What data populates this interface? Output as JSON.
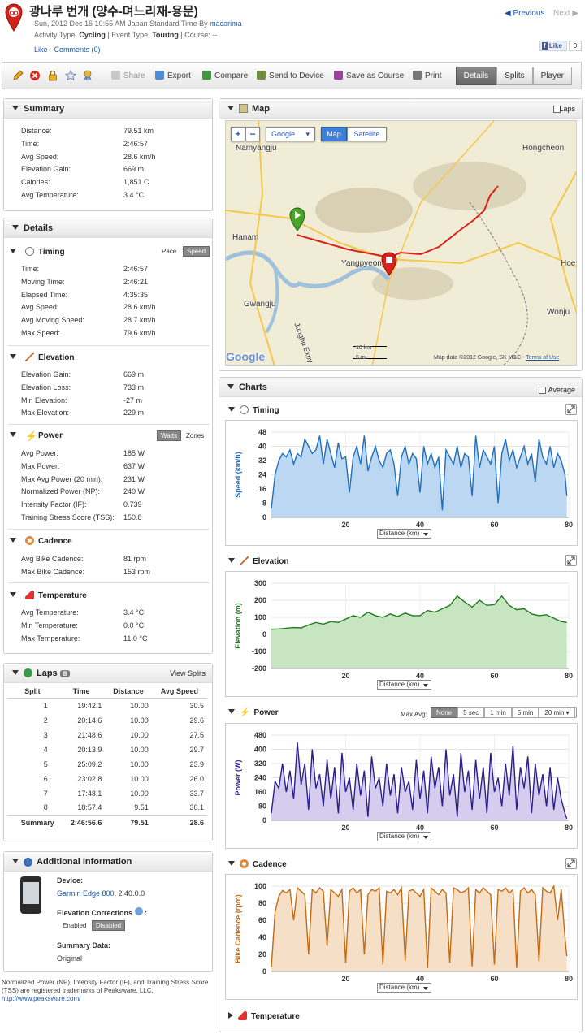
{
  "header": {
    "title": "광나루 번개 (양수-며느리재-용문)",
    "meta1": "Sun, 2012 Dec 16 10:55 AM Japan Standard Time By ",
    "author": "macarima",
    "activity_prefix": "Activity Type: ",
    "activity_type": "Cycling",
    "event_prefix": " | Event Type: ",
    "event_type": "Touring",
    "course_text": " | Course: --",
    "like": "Like",
    "comments": "Comments (0)",
    "previous": "Previous",
    "next": "Next",
    "fb_like": "Like",
    "fb_count": "0"
  },
  "toolbar": {
    "share": "Share",
    "export": "Export",
    "compare": "Compare",
    "send": "Send to Device",
    "save_course": "Save as Course",
    "print": "Print",
    "tabs": [
      "Details",
      "Splits",
      "Player"
    ],
    "active_tab": "Details"
  },
  "summary": {
    "title": "Summary",
    "rows": [
      [
        "Distance:",
        "79.51 km"
      ],
      [
        "Time:",
        "2:46:57"
      ],
      [
        "Avg Speed:",
        "28.6 km/h"
      ],
      [
        "Elevation Gain:",
        "669 m"
      ],
      [
        "Calories:",
        "1,851 C"
      ],
      [
        "Avg Temperature:",
        "3.4 °C"
      ]
    ]
  },
  "details": {
    "title": "Details",
    "timing": {
      "title": "Timing",
      "pace": "Pace",
      "speed": "Speed",
      "rows": [
        [
          "Time:",
          "2:46:57"
        ],
        [
          "Moving Time:",
          "2:46:21"
        ],
        [
          "Elapsed Time:",
          "4:35:35"
        ],
        [
          "Avg Speed:",
          "28.6 km/h"
        ],
        [
          "Avg Moving Speed:",
          "28.7 km/h"
        ],
        [
          "Max Speed:",
          "79.6 km/h"
        ]
      ]
    },
    "elevation": {
      "title": "Elevation",
      "rows": [
        [
          "Elevation Gain:",
          "669 m"
        ],
        [
          "Elevation Loss:",
          "733 m"
        ],
        [
          "Min Elevation:",
          "-27 m"
        ],
        [
          "Max Elevation:",
          "229 m"
        ]
      ]
    },
    "power": {
      "title": "Power",
      "watts": "Watts",
      "zones": "Zones",
      "rows": [
        [
          "Avg Power:",
          "185 W"
        ],
        [
          "Max Power:",
          "637 W"
        ],
        [
          "Max Avg Power (20 min):",
          "231 W"
        ],
        [
          "Normalized Power (NP):",
          "240 W"
        ],
        [
          "Intensity Factor (IF):",
          "0.739"
        ],
        [
          "Training Stress Score (TSS):",
          "150.8"
        ]
      ]
    },
    "cadence": {
      "title": "Cadence",
      "rows": [
        [
          "Avg Bike Cadence:",
          "81 rpm"
        ],
        [
          "Max Bike Cadence:",
          "153 rpm"
        ]
      ]
    },
    "temperature": {
      "title": "Temperature",
      "rows": [
        [
          "Avg Temperature:",
          "3.4 °C"
        ],
        [
          "Min Temperature:",
          "0.0 °C"
        ],
        [
          "Max Temperature:",
          "11.0 °C"
        ]
      ]
    }
  },
  "laps": {
    "title": "Laps",
    "count": "8",
    "view_splits": "View Splits",
    "headers": [
      "Split",
      "Time",
      "Distance",
      "Avg Speed"
    ],
    "rows": [
      [
        "1",
        "19:42.1",
        "10.00",
        "30.5"
      ],
      [
        "2",
        "20:14.6",
        "10.00",
        "29.6"
      ],
      [
        "3",
        "21:48.6",
        "10.00",
        "27.5"
      ],
      [
        "4",
        "20:13.9",
        "10.00",
        "29.7"
      ],
      [
        "5",
        "25:09.2",
        "10.00",
        "23.9"
      ],
      [
        "6",
        "23:02.8",
        "10.00",
        "26.0"
      ],
      [
        "7",
        "17:48.1",
        "10.00",
        "33.7"
      ],
      [
        "8",
        "18:57.4",
        "9.51",
        "30.1"
      ]
    ],
    "summary": [
      "Summary",
      "2:46:56.6",
      "79.51",
      "28.6"
    ]
  },
  "additional": {
    "title": "Additional Information",
    "device_label": "Device:",
    "device": "Garmin Edge 800",
    "device_version": ", 2.40.0.0",
    "elev_label": "Elevation Corrections",
    "enabled": "Enabled",
    "disabled": "Disabled",
    "summary_label": "Summary Data:",
    "summary_value": "Original"
  },
  "footnote": {
    "text": "Normalized Power (NP), Intensity Factor (IF), and Training Stress Score (TSS) are registered trademarks of Peaksware, LLC.",
    "url": "http://www.peaksware.com/"
  },
  "map": {
    "title": "Map",
    "laps_label": "Laps",
    "google": "Google",
    "map_btn": "Map",
    "satellite_btn": "Satellite",
    "labels": [
      "Namyangju",
      "Hongcheon",
      "Hanam",
      "Yangpyeong",
      "Hoe",
      "Gwangju",
      "Wonju",
      "Jungbu Expy"
    ],
    "scale_km": "10 km",
    "scale_mi": "5 mi",
    "attribution": "Map data ©2012 Google, SK M&C",
    "terms": "Terms of Use",
    "logo": "Google",
    "route_color": "#d8221b"
  },
  "charts_panel": {
    "title": "Charts",
    "average": "Average",
    "xaxis_select": "Distance (km)",
    "max_avg": "Max Avg:",
    "power_buttons": [
      "None",
      "5 sec",
      "1 min",
      "5 min",
      "20 min"
    ],
    "temperature_title": "Temperature"
  },
  "chart_data": [
    {
      "type": "area",
      "title": "Timing",
      "ylabel": "Speed (km/h)",
      "xlim": [
        0,
        80
      ],
      "ylim": [
        0,
        48
      ],
      "yticks": [
        0,
        8,
        16,
        24,
        32,
        40,
        48
      ],
      "xticks": [
        20,
        40,
        60,
        80
      ],
      "color": "#1f6fbf",
      "fill": "#bcd7f2",
      "x": [
        0,
        1,
        2,
        3,
        4,
        5,
        6,
        7,
        8,
        9,
        10,
        11,
        12,
        13,
        14,
        15,
        16,
        17,
        18,
        19,
        20,
        21,
        22,
        23,
        24,
        25,
        26,
        27,
        28,
        29,
        30,
        31,
        32,
        33,
        34,
        35,
        36,
        37,
        38,
        39,
        40,
        41,
        42,
        43,
        44,
        45,
        46,
        47,
        48,
        49,
        50,
        51,
        52,
        53,
        54,
        55,
        56,
        57,
        58,
        59,
        60,
        61,
        62,
        63,
        64,
        65,
        66,
        67,
        68,
        69,
        70,
        71,
        72,
        73,
        74,
        75,
        76,
        77,
        78,
        79,
        79.5
      ],
      "y": [
        5,
        24,
        32,
        36,
        34,
        38,
        30,
        36,
        34,
        44,
        40,
        36,
        38,
        46,
        30,
        44,
        36,
        28,
        42,
        33,
        34,
        14,
        34,
        40,
        30,
        46,
        26,
        34,
        40,
        32,
        28,
        36,
        38,
        30,
        12,
        34,
        40,
        30,
        36,
        33,
        14,
        40,
        30,
        36,
        28,
        34,
        4,
        38,
        34,
        30,
        40,
        28,
        36,
        34,
        12,
        46,
        28,
        38,
        34,
        30,
        40,
        8,
        36,
        44,
        32,
        38,
        28,
        34,
        40,
        30,
        36,
        20,
        44,
        34,
        30,
        40,
        28,
        36,
        32,
        24,
        12
      ]
    },
    {
      "type": "area",
      "title": "Elevation",
      "ylabel": "Elevation (m)",
      "xlim": [
        0,
        80
      ],
      "ylim": [
        -200,
        300
      ],
      "yticks": [
        -200,
        -100,
        0,
        100,
        200,
        300
      ],
      "xticks": [
        20,
        40,
        60,
        80
      ],
      "color": "#1f7a1f",
      "fill": "#c7e5c0",
      "x": [
        0,
        2,
        4,
        6,
        8,
        10,
        12,
        14,
        16,
        18,
        20,
        22,
        24,
        26,
        28,
        30,
        32,
        34,
        36,
        38,
        40,
        42,
        44,
        46,
        48,
        50,
        52,
        54,
        56,
        58,
        60,
        62,
        64,
        66,
        68,
        70,
        72,
        74,
        76,
        78,
        79.5
      ],
      "y": [
        30,
        32,
        36,
        40,
        38,
        55,
        70,
        60,
        75,
        70,
        90,
        110,
        100,
        130,
        110,
        100,
        120,
        105,
        125,
        110,
        110,
        140,
        130,
        150,
        170,
        225,
        190,
        160,
        200,
        170,
        175,
        225,
        170,
        145,
        150,
        120,
        110,
        115,
        95,
        75,
        70
      ]
    },
    {
      "type": "area",
      "title": "Power",
      "ylabel": "Power (W)",
      "xlim": [
        0,
        80
      ],
      "ylim": [
        0,
        480
      ],
      "yticks": [
        0,
        80,
        160,
        240,
        320,
        400,
        480
      ],
      "xticks": [
        20,
        40,
        60,
        80
      ],
      "color": "#2a1f8f",
      "fill": "#d6cdee",
      "x": [
        0,
        1,
        2,
        3,
        4,
        5,
        6,
        7,
        8,
        9,
        10,
        11,
        12,
        13,
        14,
        15,
        16,
        17,
        18,
        19,
        20,
        21,
        22,
        23,
        24,
        25,
        26,
        27,
        28,
        29,
        30,
        31,
        32,
        33,
        34,
        35,
        36,
        37,
        38,
        39,
        40,
        41,
        42,
        43,
        44,
        45,
        46,
        47,
        48,
        49,
        50,
        51,
        52,
        53,
        54,
        55,
        56,
        57,
        58,
        59,
        60,
        61,
        62,
        63,
        64,
        65,
        66,
        67,
        68,
        69,
        70,
        71,
        72,
        73,
        74,
        75,
        76,
        77,
        78,
        79,
        79.5
      ],
      "y": [
        40,
        220,
        180,
        320,
        160,
        280,
        120,
        440,
        200,
        320,
        60,
        400,
        180,
        260,
        80,
        340,
        120,
        300,
        40,
        380,
        160,
        240,
        60,
        320,
        140,
        280,
        20,
        360,
        180,
        240,
        80,
        320,
        140,
        260,
        40,
        300,
        160,
        220,
        60,
        340,
        120,
        280,
        40,
        360,
        180,
        300,
        80,
        400,
        140,
        260,
        20,
        380,
        160,
        280,
        60,
        340,
        120,
        300,
        40,
        380,
        160,
        240,
        80,
        320,
        140,
        420,
        60,
        300,
        180,
        360,
        40,
        320,
        140,
        260,
        80,
        300,
        60,
        240,
        120,
        40,
        10
      ]
    },
    {
      "type": "area",
      "title": "Cadence",
      "ylabel": "Bike Cadence (rpm)",
      "xlim": [
        0,
        80
      ],
      "ylim": [
        0,
        100
      ],
      "yticks": [
        0,
        20,
        40,
        60,
        80,
        100
      ],
      "xticks": [
        20,
        40,
        60,
        80
      ],
      "color": "#c86a12",
      "fill": "#f5dfc6",
      "x": [
        0,
        1,
        2,
        3,
        4,
        5,
        6,
        7,
        8,
        9,
        10,
        11,
        12,
        13,
        14,
        15,
        16,
        17,
        18,
        19,
        20,
        21,
        22,
        23,
        24,
        25,
        26,
        27,
        28,
        29,
        30,
        31,
        32,
        33,
        34,
        35,
        36,
        37,
        38,
        39,
        40,
        41,
        42,
        43,
        44,
        45,
        46,
        47,
        48,
        49,
        50,
        51,
        52,
        53,
        54,
        55,
        56,
        57,
        58,
        59,
        60,
        61,
        62,
        63,
        64,
        65,
        66,
        67,
        68,
        69,
        70,
        71,
        72,
        73,
        74,
        75,
        76,
        77,
        78,
        79,
        79.5
      ],
      "y": [
        5,
        70,
        88,
        95,
        92,
        96,
        60,
        98,
        94,
        90,
        20,
        96,
        92,
        98,
        94,
        30,
        96,
        92,
        88,
        96,
        10,
        94,
        98,
        92,
        96,
        20,
        90,
        96,
        94,
        98,
        8,
        94,
        92,
        96,
        90,
        98,
        12,
        94,
        96,
        92,
        88,
        96,
        4,
        98,
        94,
        90,
        96,
        92,
        10,
        98,
        96,
        92,
        94,
        98,
        6,
        96,
        92,
        98,
        94,
        90,
        8,
        96,
        94,
        98,
        92,
        96,
        4,
        94,
        98,
        92,
        96,
        90,
        12,
        98,
        94,
        92,
        100,
        60,
        96,
        40,
        18
      ]
    }
  ]
}
